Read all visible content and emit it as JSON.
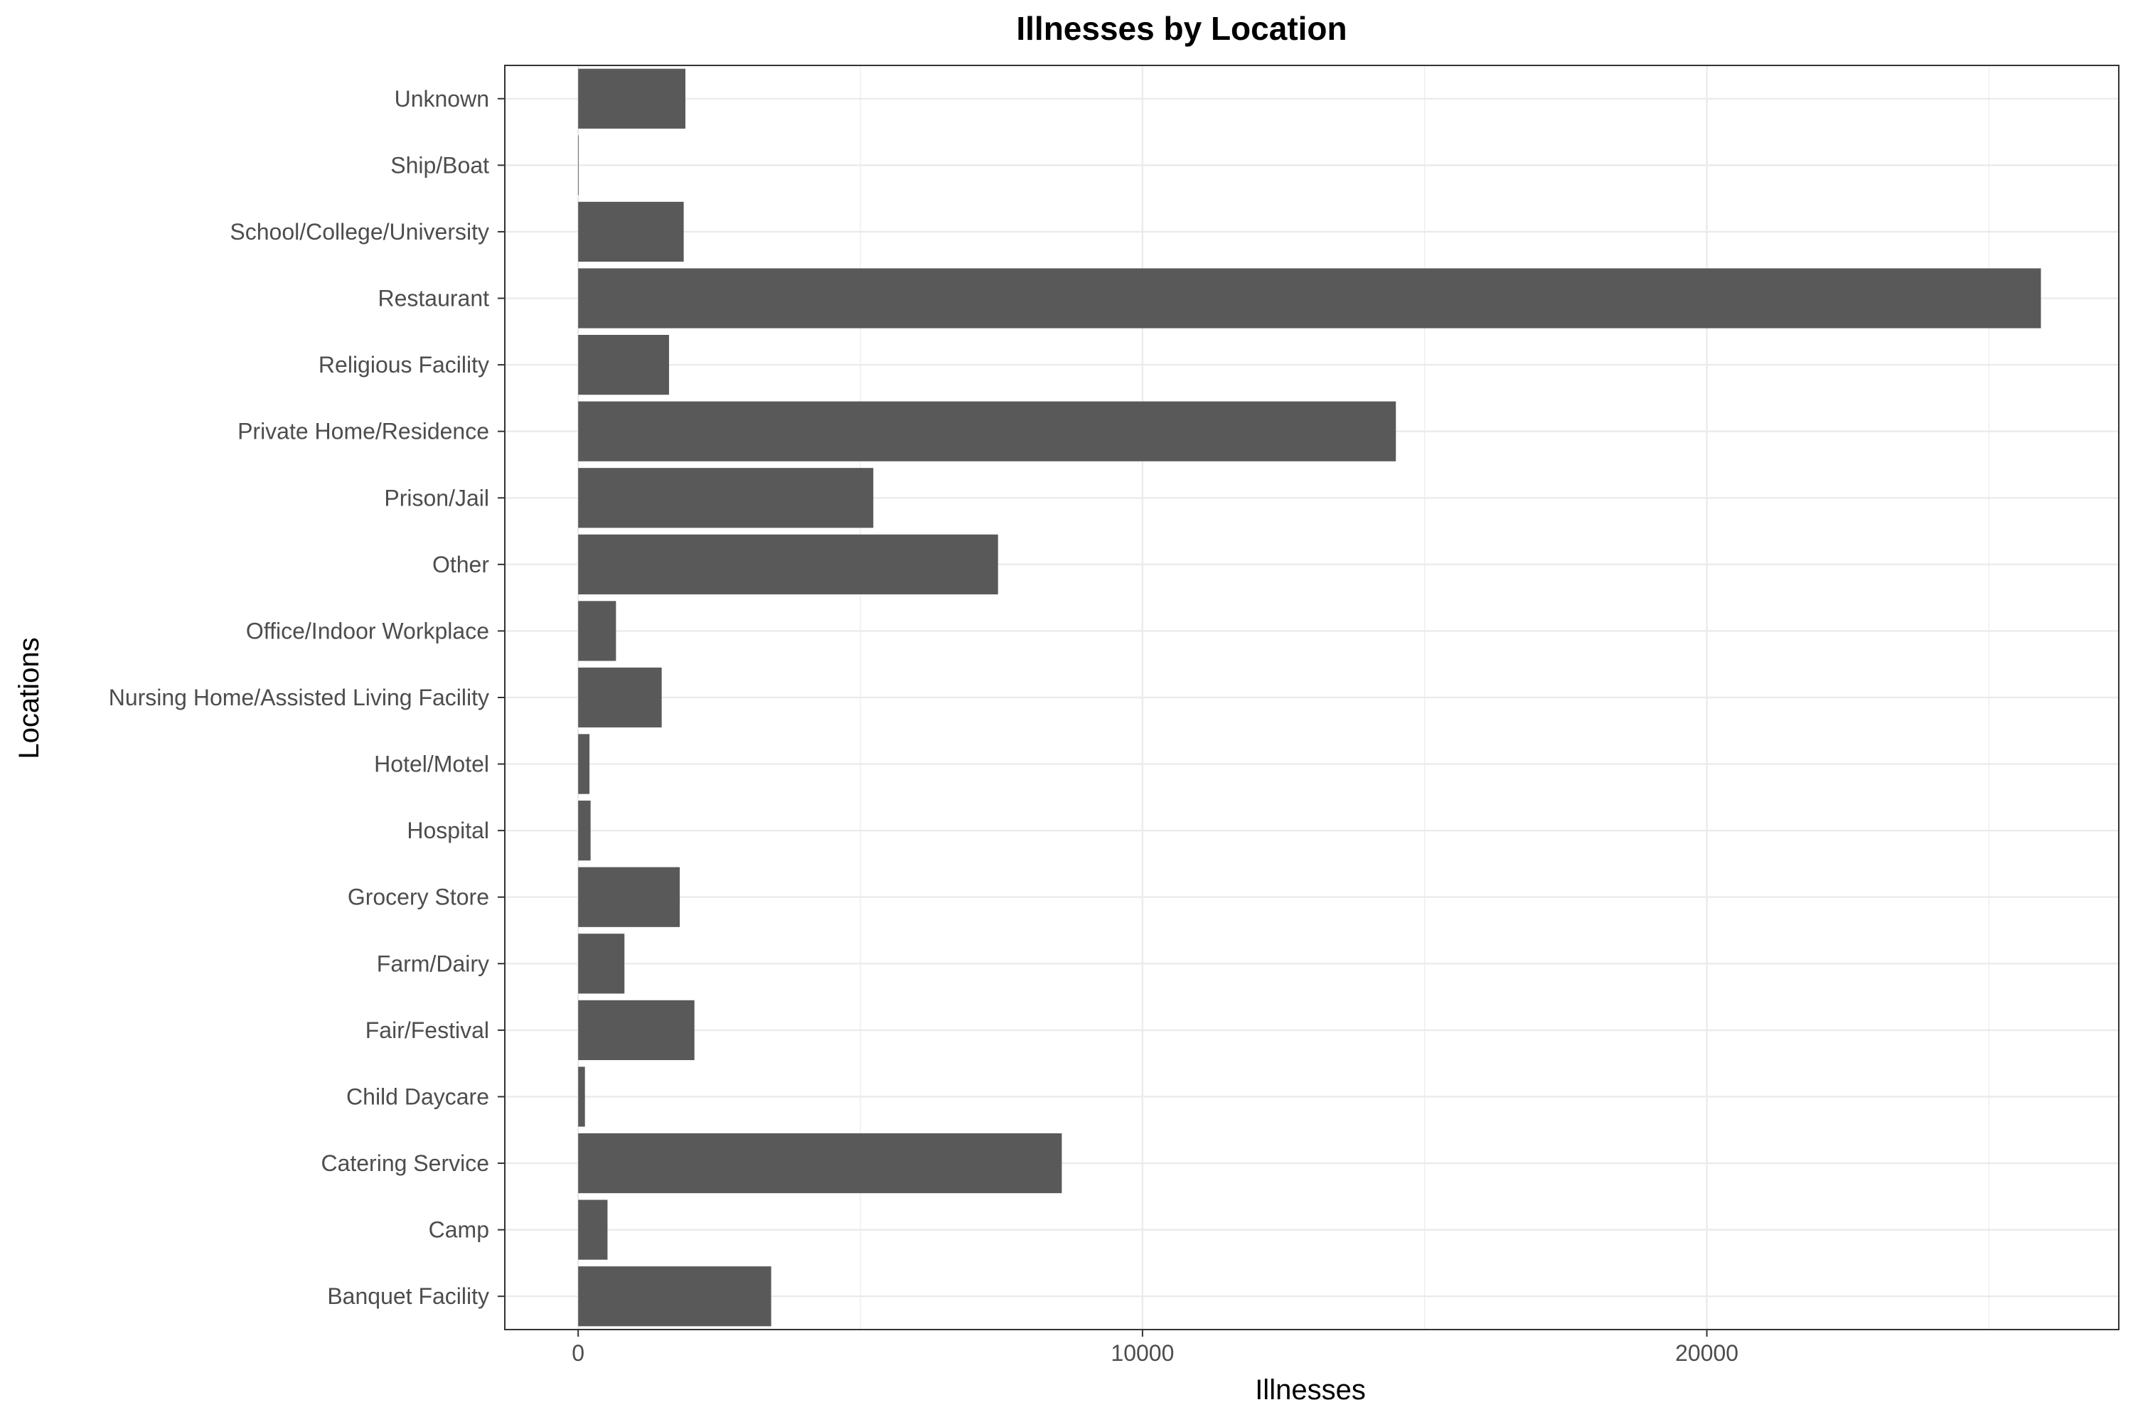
{
  "chart_data": {
    "type": "bar",
    "orientation": "horizontal",
    "title": "Illnesses by Location",
    "xlabel": "Illnesses",
    "ylabel": "Locations",
    "categories": [
      "Banquet Facility",
      "Camp",
      "Catering Service",
      "Child Daycare",
      "Fair/Festival",
      "Farm/Dairy",
      "Grocery Store",
      "Hospital",
      "Hotel/Motel",
      "Nursing Home/Assisted Living Facility",
      "Office/Indoor Workplace",
      "Other",
      "Prison/Jail",
      "Private Home/Residence",
      "Religious Facility",
      "Restaurant",
      "School/College/University",
      "Ship/Boat",
      "Unknown"
    ],
    "values": [
      3420,
      520,
      8570,
      120,
      2060,
      820,
      1800,
      220,
      200,
      1480,
      670,
      7440,
      5230,
      14490,
      1610,
      25920,
      1870,
      10,
      1900
    ],
    "xlim": [
      -1300,
      27300
    ],
    "xticks": [
      0,
      10000,
      20000
    ],
    "xtick_labels": [
      "0",
      "10000",
      "20000"
    ],
    "grid": true,
    "bar_color": "#595959",
    "grid_color": "#ebebeb",
    "panel_border_color": "#333333"
  }
}
